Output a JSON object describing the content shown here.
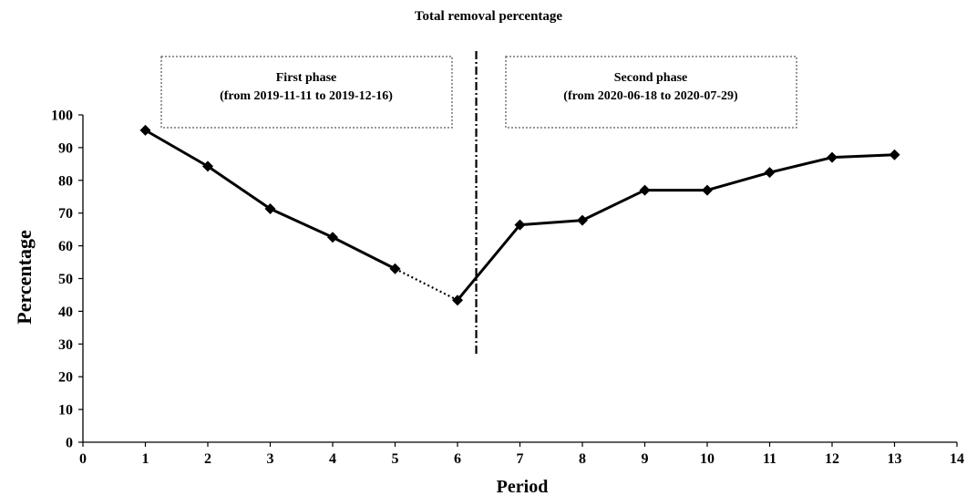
{
  "chart_data": {
    "type": "line",
    "title": "Total removal percentage",
    "xlabel": "Period",
    "ylabel": "Percentage",
    "xlim": [
      0,
      14
    ],
    "ylim": [
      0,
      100
    ],
    "xticks": [
      0,
      1,
      2,
      3,
      4,
      5,
      6,
      7,
      8,
      9,
      10,
      11,
      12,
      13,
      14
    ],
    "yticks": [
      0,
      10,
      20,
      30,
      40,
      50,
      60,
      70,
      80,
      90,
      100
    ],
    "grid": false,
    "marker": "diamond",
    "colors": {
      "line": "#000000",
      "marker": "#000000"
    },
    "series": [
      {
        "points": [
          {
            "x": 1,
            "y": 95.3
          },
          {
            "x": 2,
            "y": 84.3
          },
          {
            "x": 3,
            "y": 71.3
          },
          {
            "x": 4,
            "y": 62.6
          },
          {
            "x": 5,
            "y": 53.0
          },
          {
            "x": 6,
            "y": 43.4
          },
          {
            "x": 7,
            "y": 66.4
          },
          {
            "x": 8,
            "y": 67.8
          },
          {
            "x": 9,
            "y": 77.0
          },
          {
            "x": 10,
            "y": 77.0
          },
          {
            "x": 11,
            "y": 82.4
          },
          {
            "x": 12,
            "y": 87.0
          },
          {
            "x": 13,
            "y": 87.8
          }
        ],
        "dotted_segment": [
          5,
          6
        ]
      }
    ],
    "phase_divider": {
      "x": 6.3,
      "style": "dash-dot"
    },
    "annotations": [
      {
        "id": "first-phase",
        "lines": [
          "First phase",
          "(from 2019-11-11 to 2019-12-16)"
        ]
      },
      {
        "id": "second-phase",
        "lines": [
          "Second phase",
          "(from 2020-06-18 to 2020-07-29)"
        ]
      }
    ]
  }
}
